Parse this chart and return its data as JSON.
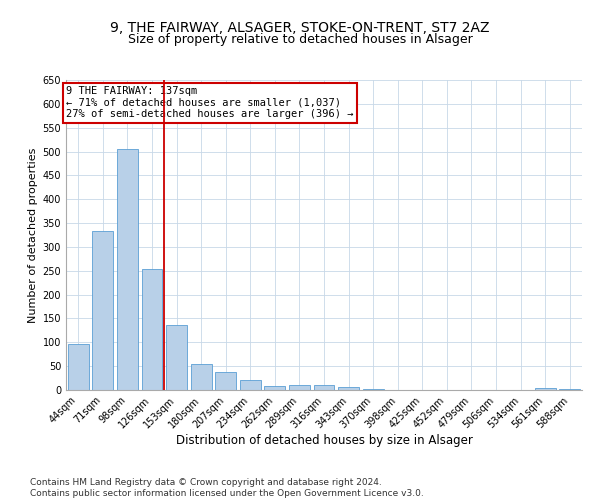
{
  "title1": "9, THE FAIRWAY, ALSAGER, STOKE-ON-TRENT, ST7 2AZ",
  "title2": "Size of property relative to detached houses in Alsager",
  "xlabel": "Distribution of detached houses by size in Alsager",
  "ylabel": "Number of detached properties",
  "categories": [
    "44sqm",
    "71sqm",
    "98sqm",
    "126sqm",
    "153sqm",
    "180sqm",
    "207sqm",
    "234sqm",
    "262sqm",
    "289sqm",
    "316sqm",
    "343sqm",
    "370sqm",
    "398sqm",
    "425sqm",
    "452sqm",
    "479sqm",
    "506sqm",
    "534sqm",
    "561sqm",
    "588sqm"
  ],
  "values": [
    96,
    333,
    505,
    253,
    137,
    54,
    37,
    21,
    9,
    11,
    11,
    6,
    2,
    1,
    1,
    1,
    0,
    0,
    0,
    4,
    2
  ],
  "bar_color": "#b8d0e8",
  "bar_edge_color": "#5a9fd4",
  "vline_x": 3.5,
  "vline_color": "#cc0000",
  "annotation_text": "9 THE FAIRWAY: 137sqm\n← 71% of detached houses are smaller (1,037)\n27% of semi-detached houses are larger (396) →",
  "annotation_box_color": "#ffffff",
  "annotation_box_edge": "#cc0000",
  "ylim": [
    0,
    650
  ],
  "yticks": [
    0,
    50,
    100,
    150,
    200,
    250,
    300,
    350,
    400,
    450,
    500,
    550,
    600,
    650
  ],
  "footer_text": "Contains HM Land Registry data © Crown copyright and database right 2024.\nContains public sector information licensed under the Open Government Licence v3.0.",
  "bg_color": "#ffffff",
  "grid_color": "#c8d8e8",
  "title1_fontsize": 10,
  "title2_fontsize": 9,
  "xlabel_fontsize": 8.5,
  "ylabel_fontsize": 8,
  "tick_fontsize": 7,
  "footer_fontsize": 6.5,
  "ann_fontsize": 7.5
}
